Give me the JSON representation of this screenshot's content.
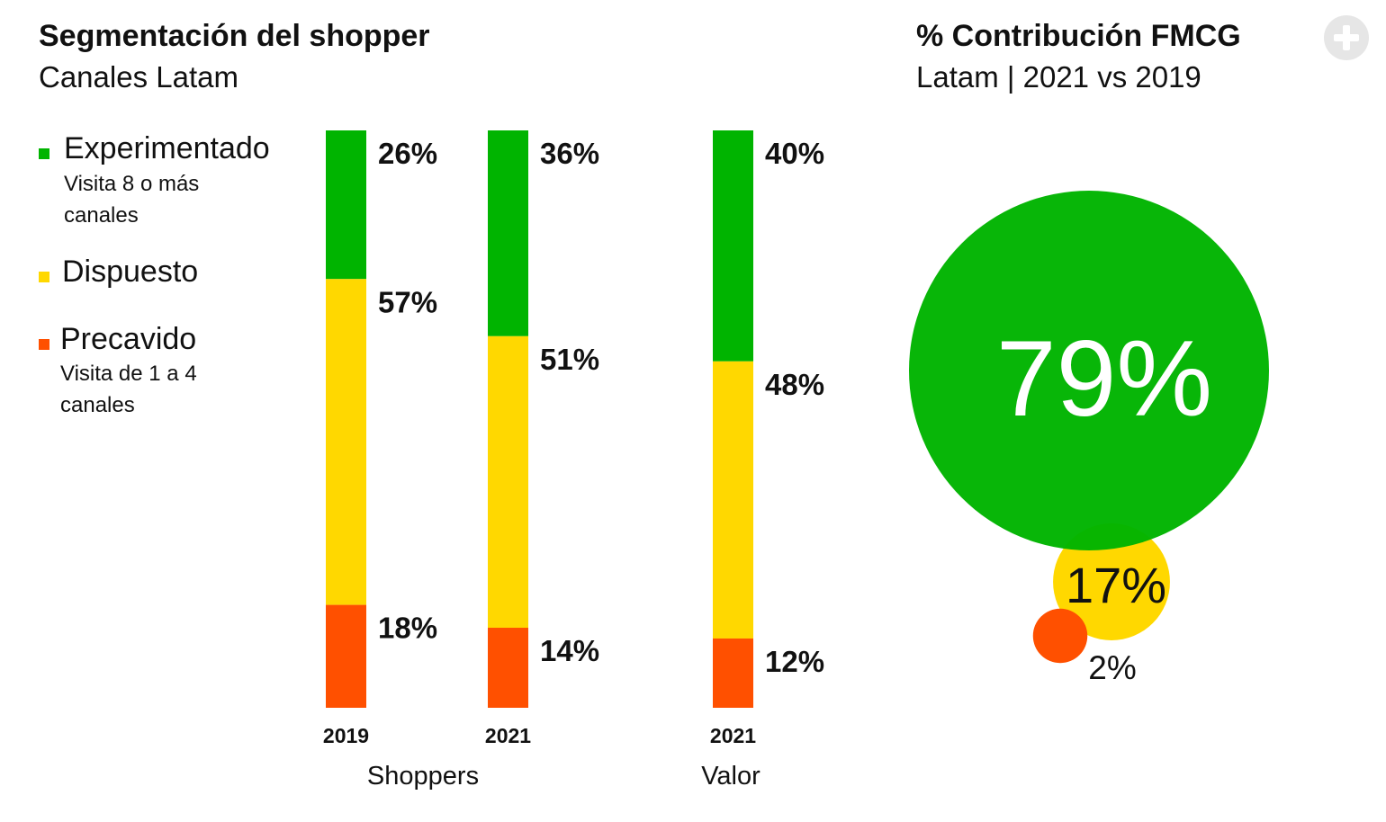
{
  "header": {
    "left_title": "Segmentación del shopper",
    "left_subtitle": "Canales Latam",
    "right_title": "% Contribución FMCG",
    "right_subtitle": "Latam | 2021 vs 2019"
  },
  "legend": [
    {
      "label": "Experimentado",
      "description": "Visita 8 o más canales",
      "color": "#00b400"
    },
    {
      "label": "Dispuesto",
      "description": "",
      "color": "#ffd800"
    },
    {
      "label": "Precavido",
      "description": "Visita de 1 a 4 canales",
      "color": "#ff5000"
    }
  ],
  "icons": {
    "add": "plus-circle-icon"
  },
  "chart_data": [
    {
      "type": "bar",
      "stacked": true,
      "percent": true,
      "categories": [
        "2019",
        "2021",
        "2021"
      ],
      "groups": [
        {
          "label": "Shoppers",
          "categories": [
            "2019",
            "2021"
          ]
        },
        {
          "label": "Valor",
          "categories": [
            "2021"
          ]
        }
      ],
      "series": [
        {
          "name": "Experimentado",
          "color": "#00b400",
          "values": [
            26,
            36,
            40
          ],
          "labels": [
            "26%",
            "36%",
            "40%"
          ]
        },
        {
          "name": "Dispuesto",
          "color": "#ffd800",
          "values": [
            57,
            51,
            48
          ],
          "labels": [
            "57%",
            "51%",
            "48%"
          ]
        },
        {
          "name": "Precavido",
          "color": "#ff5000",
          "values": [
            18,
            14,
            12
          ],
          "labels": [
            "18%",
            "14%",
            "12%"
          ]
        }
      ]
    },
    {
      "type": "bubble",
      "title": "% Contribución FMCG",
      "subtitle": "Latam | 2021 vs 2019",
      "bubbles": [
        {
          "segment": "Experimentado",
          "value": 79,
          "label": "79%",
          "color": "#00b400"
        },
        {
          "segment": "Dispuesto",
          "value": 17,
          "label": "17%",
          "color": "#ffd800"
        },
        {
          "segment": "Precavido",
          "value": 2,
          "label": "2%",
          "color": "#ff5000"
        }
      ]
    }
  ]
}
